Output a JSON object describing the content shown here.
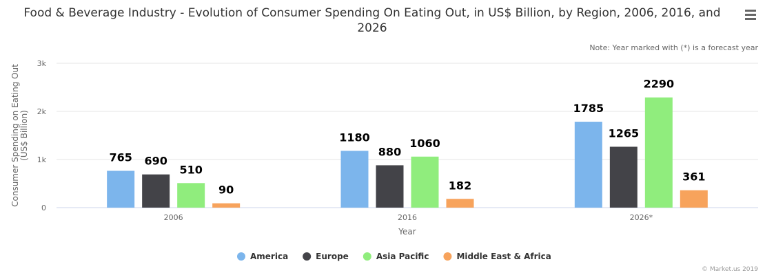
{
  "chart_data": {
    "type": "bar",
    "title": "Food & Beverage Industry - Evolution of Consumer Spending On Eating Out, in US$ Billion, by Region, 2006, 2016, and 2026",
    "note": "Note: Year marked with (*) is a forecast year",
    "xlabel": "Year",
    "ylabel": "Consumer Spending on Eating Out (US$ Billion)",
    "ylabel_lines": [
      "Consumer Spending on Eating Out",
      "(US$ Billion)"
    ],
    "ylim": [
      0,
      3000
    ],
    "yticks": [
      0,
      1000,
      2000,
      3000
    ],
    "ytick_labels": [
      "0",
      "1k",
      "2k",
      "3k"
    ],
    "grid": true,
    "legend_position": "bottom",
    "categories": [
      "2006",
      "2016",
      "2026*"
    ],
    "series": [
      {
        "name": "America",
        "color": "#7cb5ec",
        "values": [
          765,
          1180,
          1785
        ]
      },
      {
        "name": "Europe",
        "color": "#434348",
        "values": [
          690,
          880,
          1265
        ]
      },
      {
        "name": "Asia Pacific",
        "color": "#90ed7d",
        "values": [
          510,
          1060,
          2290
        ]
      },
      {
        "name": "Middle East & Africa",
        "color": "#f7a35c",
        "values": [
          90,
          182,
          361
        ]
      }
    ],
    "credits": "© Market.us 2019"
  },
  "menu_icon": "hamburger-menu-icon"
}
